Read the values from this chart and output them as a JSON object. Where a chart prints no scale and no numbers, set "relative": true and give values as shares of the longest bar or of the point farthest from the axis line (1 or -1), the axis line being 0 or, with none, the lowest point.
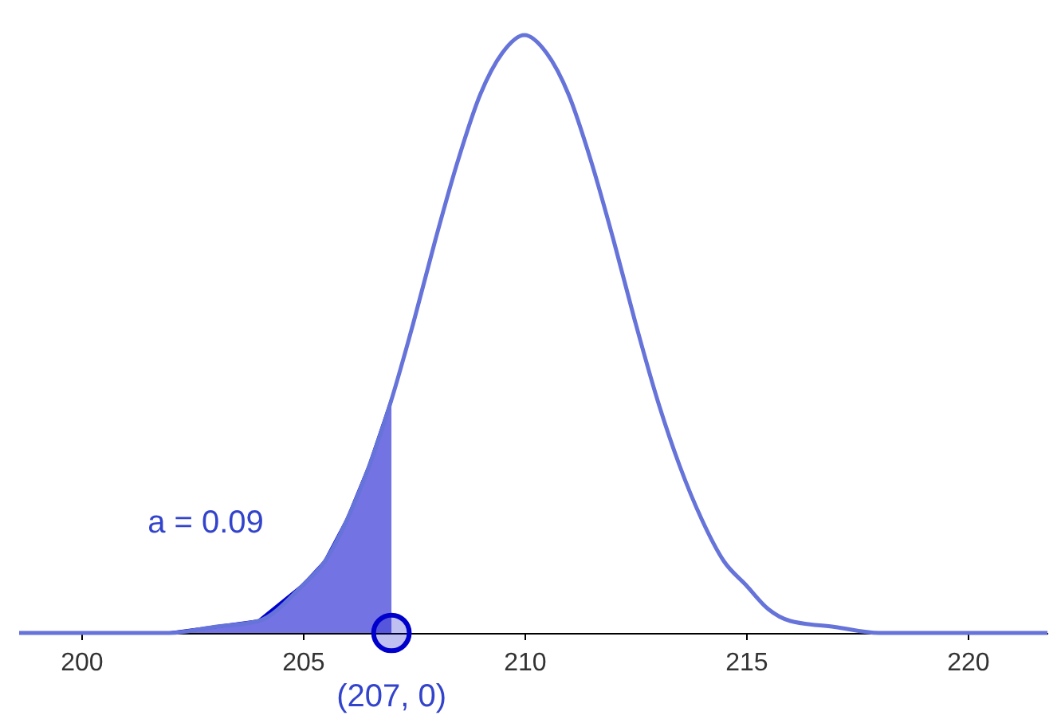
{
  "chart_data": {
    "type": "line",
    "relative": true,
    "xlim": [
      198.6,
      221.8
    ],
    "xticks": [
      200,
      205,
      210,
      215,
      220
    ],
    "grid": false,
    "legend": false,
    "tick_labels": "x",
    "series": [
      {
        "type": "area",
        "color": "#0000cc",
        "x": [
          198.6,
          202,
          203,
          204,
          205,
          205.5,
          206,
          206.5,
          207
        ],
        "values": [
          0,
          0,
          0.01,
          0.02,
          0.08,
          0.12,
          0.19,
          0.28,
          0.39
        ]
      },
      {
        "color": "#6673d9",
        "x": [
          198.6,
          202,
          203,
          204,
          205,
          205.5,
          206,
          206.5,
          207,
          207.5,
          208,
          208.5,
          209,
          209.5,
          210,
          210.5,
          211,
          211.5,
          212,
          212.5,
          213,
          213.5,
          214,
          214.5,
          215,
          215.5,
          216,
          217,
          218,
          221.8
        ],
        "values": [
          0,
          0,
          0.01,
          0.02,
          0.08,
          0.12,
          0.19,
          0.28,
          0.39,
          0.52,
          0.66,
          0.79,
          0.9,
          0.97,
          1,
          0.97,
          0.9,
          0.79,
          0.66,
          0.52,
          0.39,
          0.28,
          0.19,
          0.12,
          0.08,
          0.04,
          0.02,
          0.01,
          0,
          0
        ]
      },
      {
        "type": "scatter",
        "color": "#0000cc",
        "marker": "circle",
        "x": [
          207
        ],
        "values": [
          0
        ]
      }
    ],
    "annotations": [
      "a = 0.09",
      {
        "text": "(207, 0)",
        "x": 207,
        "y": 0
      }
    ]
  }
}
